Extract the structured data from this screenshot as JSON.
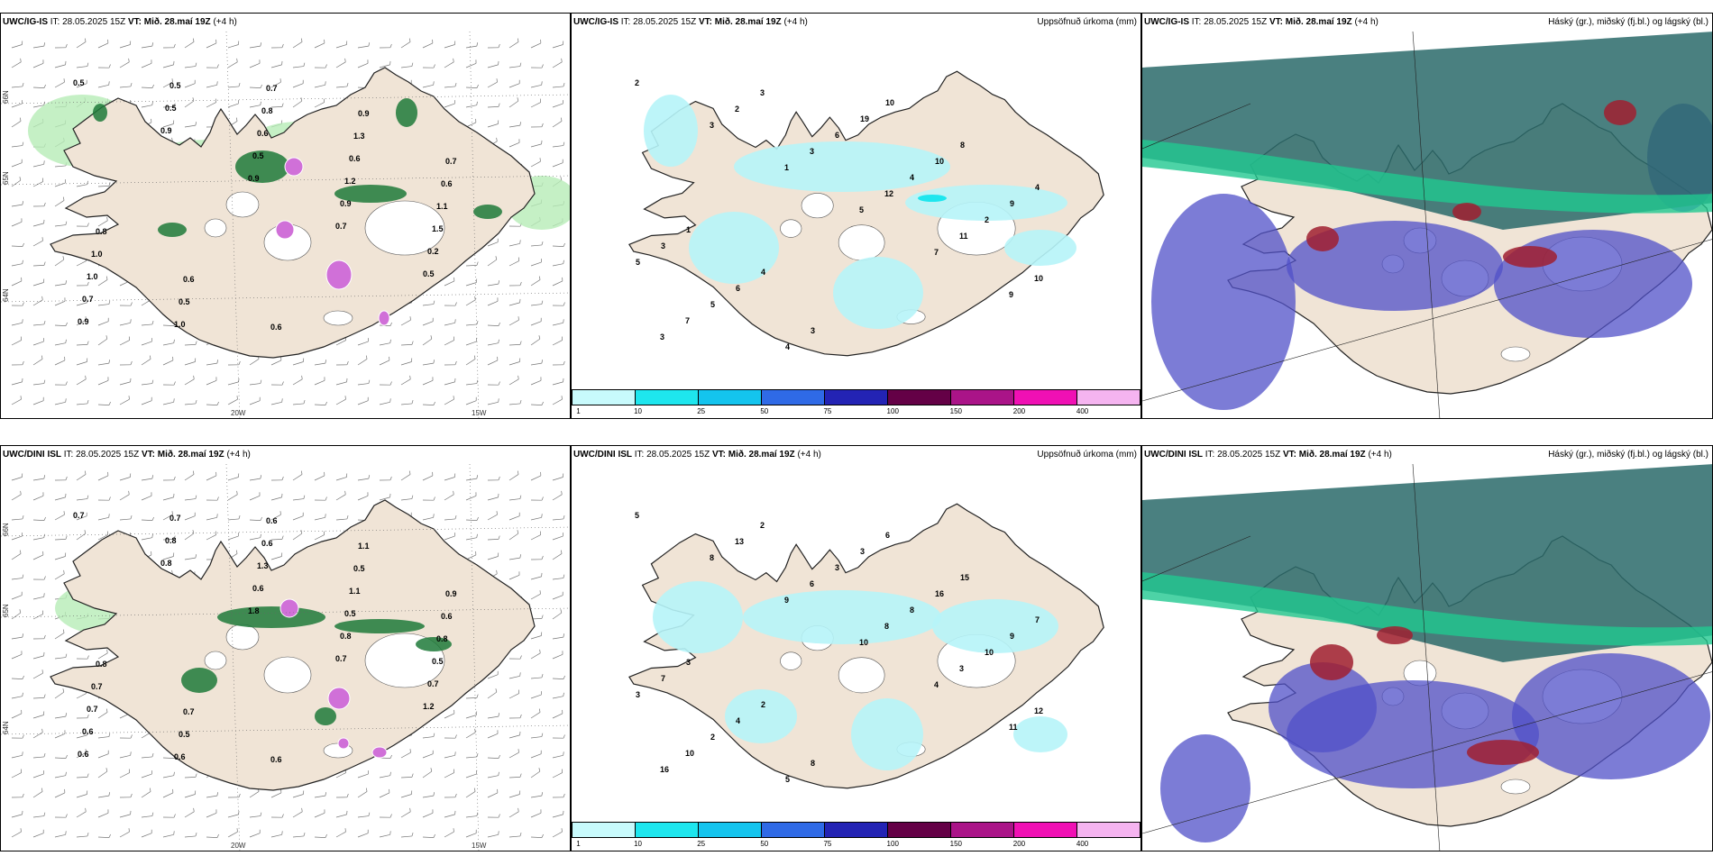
{
  "rows": [
    {
      "model": "UWC/IG-IS",
      "it": "IT: 28.05.2025 15Z",
      "vt_prefix": "VT:",
      "vt_value": "Mið. 28.maí 19Z",
      "lead": "(+4 h)",
      "wind_labels": [
        "0.5",
        "0.9",
        "0.9",
        "0.7",
        "0.5",
        "0.9",
        "0.5",
        "0.5",
        "0.9",
        "0.2",
        "0.7",
        "0.5",
        "0.6",
        "1.2",
        "1.5",
        "1.0",
        "1.0",
        "0.8",
        "0.6",
        "1.1",
        "1.0",
        "0.5",
        "0.7",
        "1.3",
        "0.6",
        "0.8",
        "0.6",
        "0.6",
        "0.9",
        "0.7"
      ],
      "precip_labels": [
        "2",
        "3",
        "1",
        "5",
        "7",
        "9",
        "3",
        "2",
        "3",
        "12",
        "11",
        "10",
        "7",
        "3",
        "6",
        "4",
        "2",
        "5",
        "5",
        "4",
        "19",
        "10",
        "9",
        "3",
        "6",
        "3",
        "10",
        "8",
        "4",
        "1",
        "4"
      ]
    },
    {
      "model": "UWC/DINI ISL",
      "it": "IT: 28.05.2025 15Z",
      "vt_prefix": "VT:",
      "vt_value": "Mið. 28.maí 19Z",
      "lead": "(+4 h)",
      "wind_labels": [
        "0.7",
        "0.8",
        "1.8",
        "0.7",
        "1.2",
        "0.6",
        "0.8",
        "0.6",
        "0.8",
        "0.7",
        "0.6",
        "0.7",
        "1.3",
        "0.5",
        "0.5",
        "0.7",
        "0.6",
        "0.6",
        "1.1",
        "0.8",
        "0.7",
        "0.5",
        "0.6",
        "0.5",
        "0.6",
        "0.8",
        "0.7",
        "0.6",
        "1.1",
        "0.9"
      ],
      "precip_labels": [
        "5",
        "8",
        "9",
        "10",
        "4",
        "11",
        "16",
        "13",
        "6",
        "8",
        "3",
        "12",
        "10",
        "2",
        "3",
        "8",
        "10",
        "3",
        "2",
        "5",
        "3",
        "16",
        "9",
        "7",
        "4",
        "8",
        "6",
        "15",
        "7",
        "3",
        "2"
      ]
    }
  ],
  "precip_title": "Uppsöfnuð úrkoma (mm)",
  "cloud_title": "Háský (gr.), miðský (fj.bl.) og lágský (bl.)",
  "lat_labels": [
    "66N",
    "65N",
    "64N"
  ],
  "lon_labels": [
    "20W",
    "15W"
  ],
  "colorbar": {
    "colors": [
      "#c8fafc",
      "#1ee6ee",
      "#14c4ee",
      "#2f6ae6",
      "#2323b4",
      "#640046",
      "#aa1488",
      "#f010b4",
      "#f5b4f0"
    ],
    "ticks": [
      "1",
      "10",
      "25",
      "50",
      "75",
      "100",
      "150",
      "200",
      "400"
    ]
  },
  "colors": {
    "land": "#f0e4d6",
    "ocean": "#ffffff",
    "precip_light": "#b6f4f8",
    "wind_green": "#1e7a3a",
    "wind_lightgreen": "#b6ecb6",
    "cloud_teal": "#2a6a6a",
    "cloud_green": "#20c890",
    "cloud_blue": "#5050c8",
    "cloud_red": "#a02030"
  }
}
